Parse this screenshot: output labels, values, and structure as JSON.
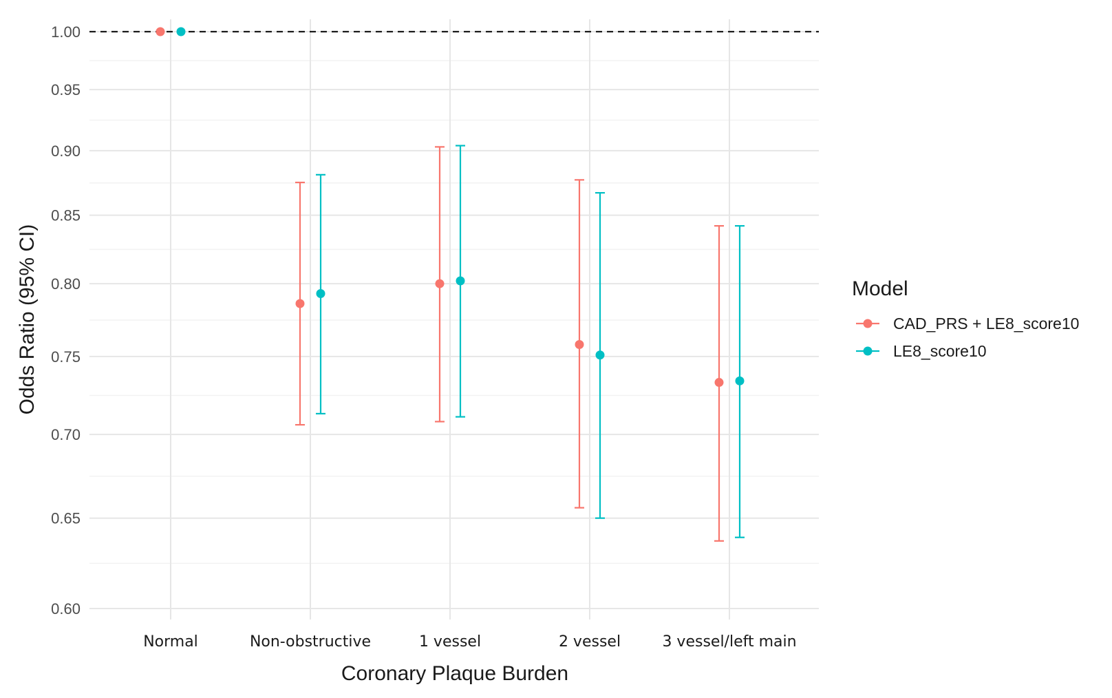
{
  "chart_data": {
    "type": "scatter",
    "subtype": "point-range (odds ratios with 95% CI error bars)",
    "xlabel": "Coronary Plaque Burden",
    "ylabel": "Odds Ratio (95% CI)",
    "y_scale": "log",
    "ylim": [
      0.6,
      1.0
    ],
    "y_ticks": [
      "0.60",
      "0.65",
      "0.70",
      "0.75",
      "0.80",
      "0.85",
      "0.90",
      "0.95",
      "1.00"
    ],
    "categories": [
      "Normal",
      "Non-obstructive",
      "1 vessel",
      "2 vessel",
      "3 vessel/left main"
    ],
    "reference_line": 1.0,
    "grid": true,
    "legend": {
      "title": "Model",
      "position": "right"
    },
    "series": [
      {
        "name": "CAD_PRS + LE8_score10",
        "color": "#F8766D",
        "values": [
          1.0,
          0.786,
          0.8,
          0.758,
          0.733
        ],
        "ci_lower": [
          1.0,
          0.706,
          0.708,
          0.656,
          0.637
        ],
        "ci_upper": [
          1.0,
          0.875,
          0.903,
          0.877,
          0.842
        ]
      },
      {
        "name": "LE8_score10",
        "color": "#00BFC4",
        "values": [
          1.0,
          0.793,
          0.802,
          0.751,
          0.734
        ],
        "ci_lower": [
          1.0,
          0.713,
          0.711,
          0.65,
          0.639
        ],
        "ci_upper": [
          1.0,
          0.881,
          0.904,
          0.867,
          0.842
        ]
      }
    ]
  }
}
